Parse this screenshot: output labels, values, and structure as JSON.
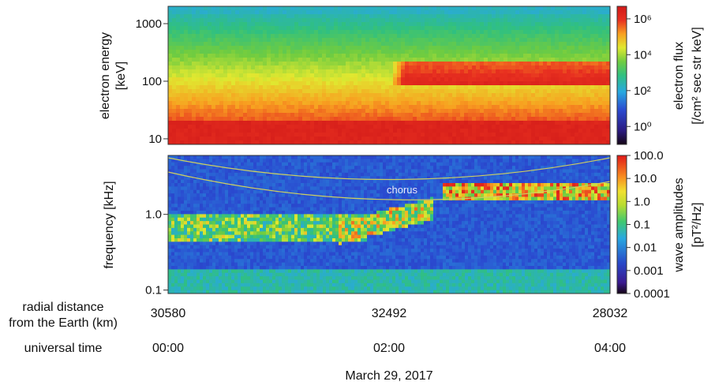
{
  "chart_data": [
    {
      "type": "heatmap",
      "name": "electron-flux-spectrogram",
      "ylabel_line1": "electron energy",
      "ylabel_line2": "[keV]",
      "yscale": "log",
      "ylim": [
        8,
        2000
      ],
      "yticks": [
        {
          "value": 10,
          "label": "10"
        },
        {
          "value": 100,
          "label": "100"
        },
        {
          "value": 1000,
          "label": "1000"
        }
      ],
      "colorbar": {
        "label_line1": "electron flux",
        "label_line2": "[/cm² sec str keV]",
        "scale": "log",
        "range": [
          0.1,
          5000000
        ],
        "ticks": [
          {
            "value": 1,
            "label": "10⁰"
          },
          {
            "value": 100,
            "label": "10²"
          },
          {
            "value": 10000,
            "label": "10⁴"
          },
          {
            "value": 1000000,
            "label": "10⁶"
          }
        ]
      },
      "colors": [
        "#1a0a1a",
        "#2a2a90",
        "#1e6fd8",
        "#2ab8e0",
        "#40c878",
        "#8ad040",
        "#e8e830",
        "#f89a20",
        "#e83020",
        "#c81818"
      ]
    },
    {
      "type": "heatmap",
      "name": "wave-amplitude-spectrogram",
      "ylabel": "frequency [kHz]",
      "yscale": "log",
      "ylim": [
        0.09,
        6
      ],
      "yticks": [
        {
          "value": 0.1,
          "label": "0.1"
        },
        {
          "value": 1.0,
          "label": "1.0"
        }
      ],
      "annotation": "chorus",
      "colorbar": {
        "label_line1": "wave amplitudes",
        "label_line2": "[pT²/Hz]",
        "scale": "log",
        "range": [
          0.0001,
          100
        ],
        "ticks": [
          {
            "value": 100,
            "label": "100.0"
          },
          {
            "value": 10,
            "label": "10.0"
          },
          {
            "value": 1,
            "label": "1.0"
          },
          {
            "value": 0.1,
            "label": "0.1"
          },
          {
            "value": 0.01,
            "label": "0.01"
          },
          {
            "value": 0.001,
            "label": "0.001"
          },
          {
            "value": 0.0001,
            "label": "0.0001"
          }
        ]
      }
    }
  ],
  "x_axis": {
    "radial_label_line1": "radial distance",
    "radial_label_line2": "from the Earth (km)",
    "radial_values": [
      "30580",
      "32492",
      "28032"
    ],
    "time_label": "universal time",
    "time_values": [
      "00:00",
      "02:00",
      "04:00"
    ],
    "date": "March 29, 2017"
  }
}
